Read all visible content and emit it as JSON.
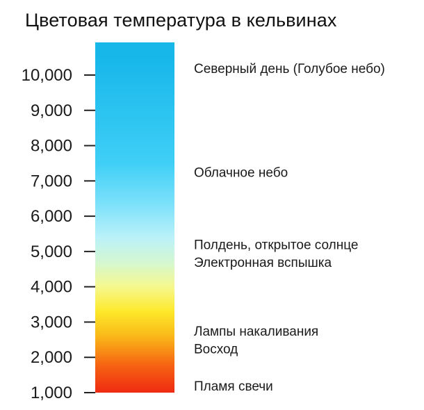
{
  "title": "Цветовая температура в кельвинах",
  "chart_data": {
    "type": "color-scale",
    "ylim": [
      1000,
      10500
    ],
    "tick_labels": [
      "1,000",
      "2,000",
      "3,000",
      "4,000",
      "5,000",
      "6,000",
      "7,000",
      "8,000",
      "9,000",
      "10,000"
    ],
    "tick_values": [
      1000,
      2000,
      3000,
      4000,
      5000,
      6000,
      7000,
      8000,
      9000,
      10000
    ],
    "gradient": [
      {
        "value": 1000,
        "color": "#ef2a12"
      },
      {
        "value": 1800,
        "color": "#f66512"
      },
      {
        "value": 2600,
        "color": "#fab818"
      },
      {
        "value": 3300,
        "color": "#fde92b"
      },
      {
        "value": 4000,
        "color": "#f6f88e"
      },
      {
        "value": 4700,
        "color": "#d4f7d2"
      },
      {
        "value": 5400,
        "color": "#baf1f9"
      },
      {
        "value": 6300,
        "color": "#7fe2fb"
      },
      {
        "value": 7500,
        "color": "#3fcff6"
      },
      {
        "value": 10500,
        "color": "#17b7ea"
      }
    ],
    "annotations": [
      {
        "text": "Северный день (Голубое небо)",
        "value": 10200
      },
      {
        "text": "Облачное небо",
        "value": 7250
      },
      {
        "text": "Полдень, открытое солнце",
        "value": 5200
      },
      {
        "text": "Электронная вспышка",
        "value": 4700
      },
      {
        "text": "Лампы накаливания",
        "value": 2750
      },
      {
        "text": "Восход",
        "value": 2250
      },
      {
        "text": "Пламя свечи",
        "value": 1200
      }
    ]
  }
}
